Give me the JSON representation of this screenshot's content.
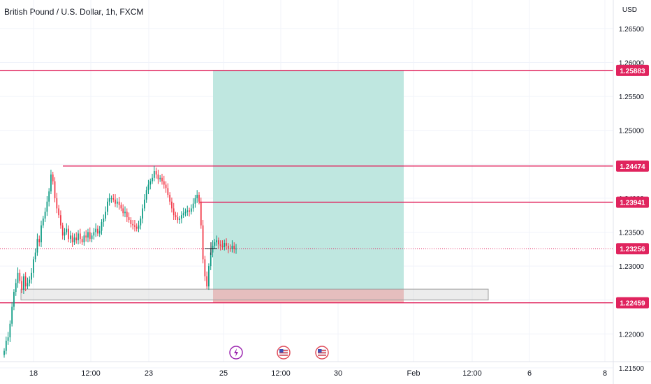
{
  "header": {
    "title": "British Pound / U.S. Dollar, 1h, FXCM",
    "currency": "USD"
  },
  "chart_data": {
    "type": "candlestick",
    "y_ticks": [
      "1.26500",
      "1.26000",
      "1.25500",
      "1.25000",
      "1.24500",
      "1.24000",
      "1.23500",
      "1.23000",
      "1.22500",
      "1.22000",
      "1.21500"
    ],
    "x_ticks": [
      "18",
      "12:00",
      "23",
      "25",
      "12:00",
      "30",
      "Feb",
      "12:00",
      "6",
      "8"
    ],
    "price_levels": [
      {
        "label": "1.25883",
        "value": 1.25883,
        "x_from": "start"
      },
      {
        "label": "1.24474",
        "value": 1.24474,
        "x_from": "Jan 18"
      },
      {
        "label": "1.23941",
        "value": 1.23941,
        "x_from": "Jan 24"
      },
      {
        "label": "1.22459",
        "value": 1.22459,
        "x_from": "start"
      }
    ],
    "last_price": {
      "label": "1.23256",
      "value": 1.23256
    },
    "position": {
      "entry": 1.2266,
      "target": 1.25883,
      "stop": 1.22459,
      "from": "Jan 24",
      "to": "Feb 1"
    },
    "support_zone": {
      "top": 1.2266,
      "bottom": 1.225,
      "from": "Jan 17",
      "to": "Feb 3"
    },
    "closes": [
      1.2175,
      1.219,
      1.2195,
      1.2215,
      1.224,
      1.2262,
      1.2275,
      1.229,
      1.2278,
      1.2265,
      1.2285,
      1.227,
      1.2275,
      1.228,
      1.229,
      1.231,
      1.232,
      1.234,
      1.2335,
      1.236,
      1.237,
      1.238,
      1.2395,
      1.241,
      1.2435,
      1.2425,
      1.24,
      1.2385,
      1.2375,
      1.236,
      1.2345,
      1.235,
      1.2355,
      1.234,
      1.2345,
      1.2335,
      1.2342,
      1.2338,
      1.2348,
      1.234,
      1.2335,
      1.2345,
      1.2342,
      1.235,
      1.234,
      1.2345,
      1.235,
      1.2355,
      1.2348,
      1.2352,
      1.2365,
      1.237,
      1.238,
      1.2395,
      1.24,
      1.24,
      1.2398,
      1.2392,
      1.2395,
      1.239,
      1.2385,
      1.2378,
      1.238,
      1.2372,
      1.2368,
      1.2362,
      1.236,
      1.2358,
      1.2355,
      1.236,
      1.237,
      1.2385,
      1.2398,
      1.2412,
      1.242,
      1.2425,
      1.243,
      1.244,
      1.2435,
      1.2428,
      1.243,
      1.2425,
      1.242,
      1.2415,
      1.2405,
      1.2395,
      1.2385,
      1.2375,
      1.2372,
      1.2368,
      1.237,
      1.2375,
      1.2378,
      1.238,
      1.2382,
      1.238,
      1.2385,
      1.2392,
      1.24,
      1.2405,
      1.2395,
      1.236,
      1.231,
      1.2285,
      1.227,
      1.23,
      1.232,
      1.233,
      1.2335,
      1.2338,
      1.2332,
      1.233,
      1.2328,
      1.2334,
      1.233,
      1.2326,
      1.2325,
      1.233,
      1.2325,
      1.23256
    ]
  },
  "events": [
    {
      "icon": "lightning-icon",
      "color": "#9c27b0"
    },
    {
      "icon": "us-flag-icon",
      "color": "#e04d5b"
    },
    {
      "icon": "us-flag-icon",
      "color": "#e04d5b"
    }
  ],
  "colors": {
    "up": "#089981",
    "down": "#f23645",
    "level": "#e0245e",
    "target_fill": "#bfe7e0",
    "stop_fill": "#f5b9b9"
  }
}
